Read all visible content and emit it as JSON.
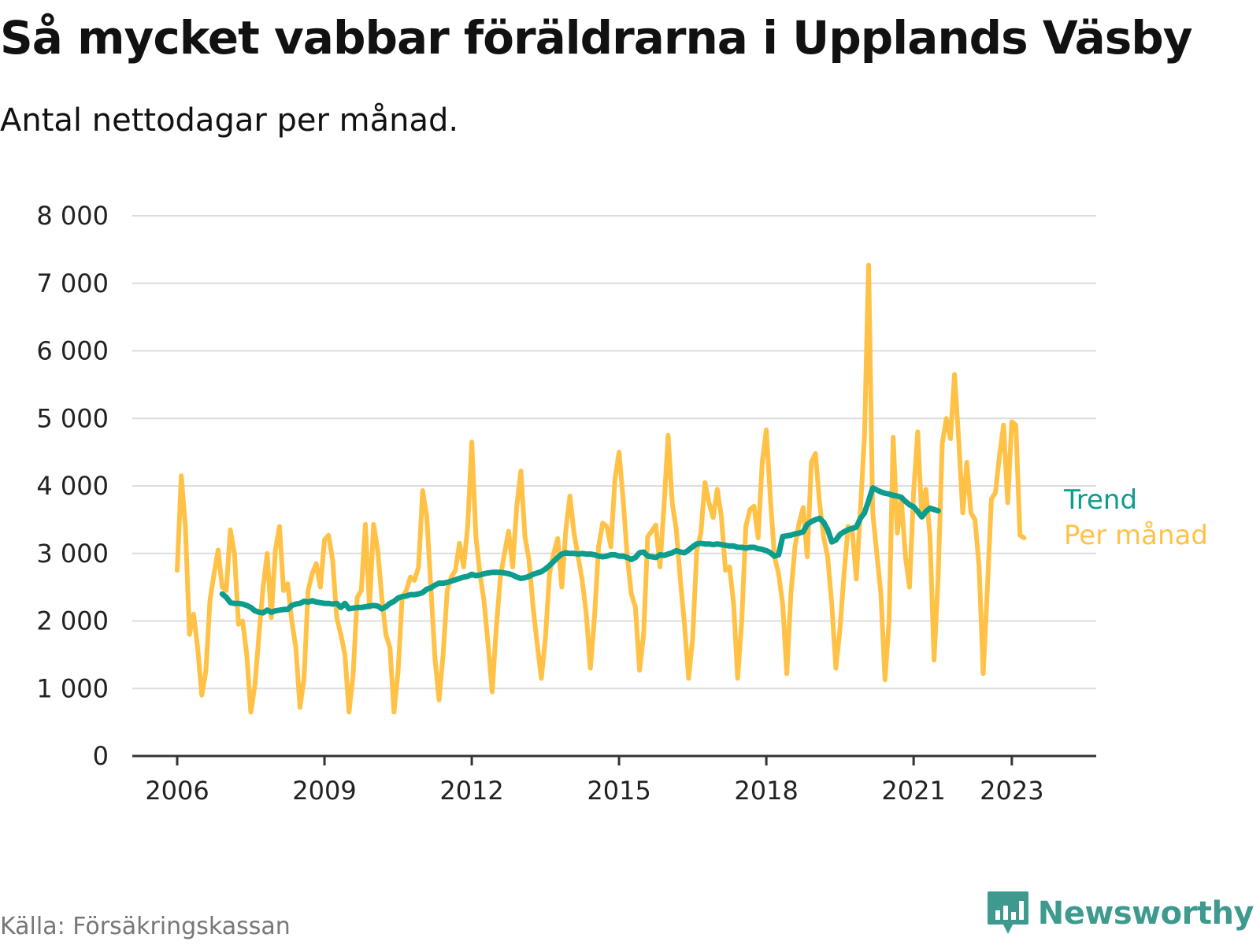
{
  "title": "Så mycket vabbar föräldrarna i Upplands Väsby",
  "subtitle": "Antal nettodagar per månad.",
  "source": "Källa: Försäkringskassan",
  "brand": "Newsworthy",
  "colors": {
    "monthly": "#FFC247",
    "trend": "#0E9C8C",
    "grid": "#dddddd",
    "axis": "#333333",
    "brand": "#3e9a8f"
  },
  "chart_data": {
    "type": "line",
    "x_unit": "decimal year",
    "ylim": [
      0,
      8000
    ],
    "yticks": [
      {
        "value": 0,
        "label": "0"
      },
      {
        "value": 1000,
        "label": "1 000"
      },
      {
        "value": 2000,
        "label": "2 000"
      },
      {
        "value": 3000,
        "label": "3 000"
      },
      {
        "value": 4000,
        "label": "4 000"
      },
      {
        "value": 5000,
        "label": "5 000"
      },
      {
        "value": 6000,
        "label": "6 000"
      },
      {
        "value": 7000,
        "label": "7 000"
      },
      {
        "value": 8000,
        "label": "8 000"
      }
    ],
    "xticks": [
      {
        "value": 2006,
        "label": "2006"
      },
      {
        "value": 2009,
        "label": "2009"
      },
      {
        "value": 2012,
        "label": "2012"
      },
      {
        "value": 2015,
        "label": "2015"
      },
      {
        "value": 2018,
        "label": "2018"
      },
      {
        "value": 2021,
        "label": "2021"
      },
      {
        "value": 2023,
        "label": "2023"
      }
    ],
    "series": [
      {
        "name": "Per månad",
        "key": "monthly",
        "x_start": 2006.0,
        "x_step": 0.0833333,
        "values": [
          2750,
          4150,
          3400,
          1800,
          2100,
          1600,
          900,
          1250,
          2300,
          2700,
          3050,
          2500,
          2450,
          3350,
          3000,
          1950,
          2000,
          1500,
          650,
          1050,
          1800,
          2500,
          3000,
          2050,
          3050,
          3400,
          2450,
          2550,
          2000,
          1600,
          720,
          1150,
          2450,
          2700,
          2850,
          2500,
          3200,
          3270,
          2900,
          2050,
          1800,
          1500,
          650,
          1200,
          2350,
          2450,
          3430,
          2200,
          3430,
          3050,
          2350,
          1800,
          1600,
          650,
          1250,
          2350,
          2450,
          2650,
          2600,
          2800,
          3930,
          3550,
          2500,
          1450,
          830,
          1500,
          2450,
          2650,
          2750,
          3150,
          2800,
          3400,
          4650,
          3250,
          2700,
          2300,
          1650,
          950,
          1900,
          2650,
          3000,
          3330,
          2800,
          3700,
          4220,
          3250,
          2900,
          2200,
          1650,
          1150,
          1750,
          2700,
          3000,
          3220,
          2500,
          3350,
          3850,
          3300,
          2950,
          2600,
          2100,
          1300,
          2050,
          3100,
          3450,
          3400,
          3100,
          4100,
          4500,
          3800,
          2950,
          2400,
          2200,
          1270,
          1800,
          3250,
          3330,
          3420,
          2800,
          3700,
          4750,
          3750,
          3350,
          2600,
          1950,
          1150,
          1750,
          3050,
          3300,
          4050,
          3750,
          3530,
          3950,
          3550,
          2750,
          2800,
          2250,
          1150,
          2000,
          3400,
          3650,
          3700,
          3230,
          4350,
          4830,
          3800,
          2950,
          2700,
          2250,
          1220,
          2400,
          3100,
          3450,
          3680,
          2950,
          4350,
          4480,
          3750,
          3250,
          2950,
          2250,
          1300,
          1870,
          2700,
          3400,
          3350,
          2620,
          3650,
          4750,
          7270,
          3600,
          3000,
          2400,
          1130,
          2000,
          4720,
          3300,
          3800,
          2950,
          2500,
          3900,
          4800,
          3550,
          3950,
          3250,
          1420,
          2650,
          4630,
          5000,
          4700,
          5650,
          4700,
          3600,
          4350,
          3600,
          3500,
          2800,
          1220,
          2450,
          3800,
          3900,
          4450,
          4900,
          3750,
          4950,
          4900,
          3270,
          3230
        ]
      },
      {
        "name": "Trend",
        "key": "trend",
        "x_start": 2006.917,
        "x_step": 0.0833333,
        "values": [
          2400,
          2350,
          2270,
          2260,
          2260,
          2250,
          2230,
          2200,
          2150,
          2130,
          2120,
          2160,
          2130,
          2150,
          2160,
          2170,
          2170,
          2230,
          2250,
          2260,
          2290,
          2280,
          2300,
          2280,
          2270,
          2260,
          2260,
          2250,
          2260,
          2200,
          2260,
          2180,
          2190,
          2200,
          2200,
          2210,
          2220,
          2230,
          2220,
          2180,
          2210,
          2260,
          2290,
          2340,
          2360,
          2370,
          2390,
          2390,
          2400,
          2420,
          2470,
          2490,
          2530,
          2560,
          2560,
          2570,
          2590,
          2610,
          2630,
          2650,
          2660,
          2690,
          2670,
          2680,
          2700,
          2710,
          2720,
          2720,
          2720,
          2710,
          2700,
          2680,
          2650,
          2630,
          2640,
          2660,
          2690,
          2710,
          2730,
          2770,
          2820,
          2880,
          2940,
          2990,
          3010,
          3000,
          3000,
          2990,
          3000,
          2990,
          2990,
          2980,
          2960,
          2950,
          2960,
          2980,
          2980,
          2960,
          2960,
          2940,
          2910,
          2940,
          3010,
          3020,
          2960,
          2950,
          2940,
          2980,
          2970,
          2990,
          3010,
          3040,
          3020,
          3010,
          3050,
          3100,
          3140,
          3150,
          3140,
          3140,
          3130,
          3140,
          3130,
          3120,
          3110,
          3110,
          3090,
          3090,
          3080,
          3090,
          3090,
          3070,
          3060,
          3040,
          3010,
          2960,
          2980,
          3250,
          3260,
          3270,
          3290,
          3300,
          3320,
          3430,
          3470,
          3500,
          3520,
          3460,
          3350,
          3170,
          3200,
          3280,
          3320,
          3350,
          3370,
          3390,
          3520,
          3600,
          3780,
          3970,
          3940,
          3910,
          3890,
          3880,
          3860,
          3850,
          3830,
          3770,
          3720,
          3690,
          3620,
          3540,
          3620,
          3670,
          3650,
          3630
        ]
      }
    ]
  },
  "legend": {
    "trend_label": "Trend",
    "monthly_label": "Per månad"
  }
}
